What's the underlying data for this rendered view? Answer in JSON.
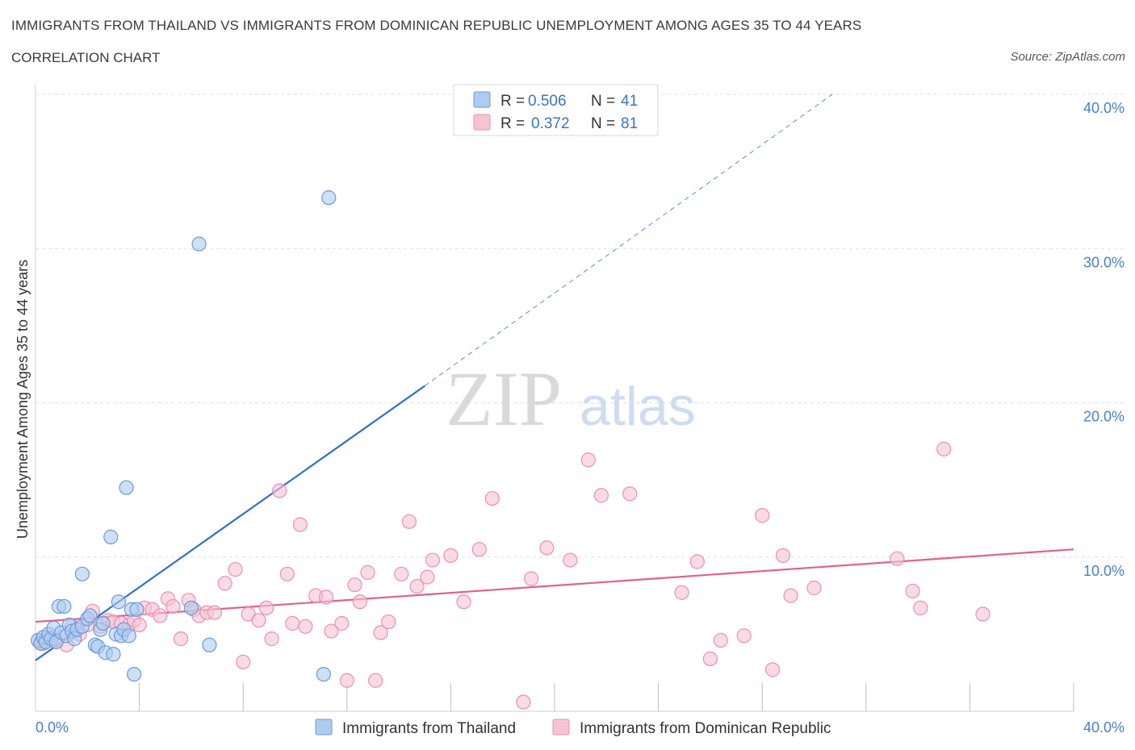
{
  "header": {
    "title": "IMMIGRANTS FROM THAILAND VS IMMIGRANTS FROM DOMINICAN REPUBLIC UNEMPLOYMENT AMONG AGES 35 TO 44 YEARS",
    "subtitle": "CORRELATION CHART",
    "source": "Source: ZipAtlas.com"
  },
  "watermark": {
    "zip": "ZIP",
    "atlas": "atlas"
  },
  "colors": {
    "thailand_fill": "#aecbf0",
    "thailand_stroke": "#6a9ad6",
    "thailand_line": "#2f6fcc",
    "dominican_fill": "#f6c3d3",
    "dominican_stroke": "#e891ad",
    "dominican_line": "#e0608c",
    "axis_label": "#4a7fc9",
    "grid": "#dddddd"
  },
  "legend": {
    "rows": [
      {
        "r_label": "R =",
        "r_value": "0.506",
        "n_label": "N =",
        "n_value": "41"
      },
      {
        "r_label": "R =",
        "r_value": "0.372",
        "n_label": "N =",
        "n_value": "81"
      }
    ]
  },
  "chart_data": {
    "type": "scatter",
    "title": "IMMIGRANTS FROM THAILAND VS IMMIGRANTS FROM DOMINICAN REPUBLIC UNEMPLOYMENT AMONG AGES 35 TO 44 YEARS",
    "subtitle": "CORRELATION CHART",
    "xlabel": "",
    "ylabel": "Unemployment Among Ages 35 to 44 years",
    "xlim": [
      0,
      40
    ],
    "ylim": [
      0,
      40
    ],
    "x_tick_labels": [
      "0.0%",
      "40.0%"
    ],
    "y_tick_labels": [
      "10.0%",
      "20.0%",
      "30.0%",
      "40.0%"
    ],
    "y_ticks": [
      10,
      20,
      30,
      40
    ],
    "grid": true,
    "legend_position": "top-center",
    "series": [
      {
        "name": "Immigrants from Thailand",
        "r": 0.506,
        "n": 41,
        "trend": {
          "x0": 0,
          "y0": 3.3,
          "x1": 15,
          "y1": 21.1,
          "dashed_to_x": 30.7,
          "dashed_to_y": 40
        },
        "points": [
          [
            0.1,
            4.6
          ],
          [
            0.2,
            4.4
          ],
          [
            0.3,
            4.8
          ],
          [
            0.4,
            4.5
          ],
          [
            0.5,
            5.0
          ],
          [
            0.6,
            4.7
          ],
          [
            0.7,
            5.4
          ],
          [
            0.8,
            4.5
          ],
          [
            0.9,
            6.8
          ],
          [
            1.0,
            5.1
          ],
          [
            1.1,
            6.8
          ],
          [
            1.2,
            4.9
          ],
          [
            1.3,
            5.6
          ],
          [
            1.4,
            5.2
          ],
          [
            1.5,
            4.7
          ],
          [
            1.6,
            5.3
          ],
          [
            1.8,
            5.5
          ],
          [
            1.8,
            8.9
          ],
          [
            2.0,
            6.0
          ],
          [
            2.1,
            6.2
          ],
          [
            2.3,
            4.3
          ],
          [
            2.4,
            4.2
          ],
          [
            2.5,
            5.3
          ],
          [
            2.6,
            5.7
          ],
          [
            2.7,
            3.8
          ],
          [
            2.9,
            11.3
          ],
          [
            3.0,
            3.7
          ],
          [
            3.1,
            5.0
          ],
          [
            3.2,
            7.1
          ],
          [
            3.3,
            4.9
          ],
          [
            3.4,
            5.3
          ],
          [
            3.5,
            14.5
          ],
          [
            3.6,
            4.9
          ],
          [
            3.7,
            6.6
          ],
          [
            3.8,
            2.4
          ],
          [
            3.9,
            6.6
          ],
          [
            6.0,
            6.7
          ],
          [
            6.3,
            30.3
          ],
          [
            6.7,
            4.3
          ],
          [
            11.3,
            33.3
          ],
          [
            11.1,
            2.4
          ]
        ]
      },
      {
        "name": "Immigrants from Dominican Republic",
        "r": 0.372,
        "n": 81,
        "trend": {
          "x0": 0,
          "y0": 5.8,
          "x1": 40,
          "y1": 10.5
        },
        "points": [
          [
            0.2,
            4.5
          ],
          [
            0.5,
            4.8
          ],
          [
            0.8,
            4.6
          ],
          [
            1.2,
            4.3
          ],
          [
            1.4,
            5.5
          ],
          [
            1.7,
            5.0
          ],
          [
            2.0,
            5.6
          ],
          [
            2.2,
            6.5
          ],
          [
            2.5,
            5.5
          ],
          [
            2.8,
            5.9
          ],
          [
            3.0,
            5.8
          ],
          [
            3.3,
            5.7
          ],
          [
            3.6,
            5.6
          ],
          [
            3.8,
            5.9
          ],
          [
            4.0,
            5.6
          ],
          [
            4.2,
            6.7
          ],
          [
            4.5,
            6.6
          ],
          [
            4.8,
            6.2
          ],
          [
            5.1,
            7.3
          ],
          [
            5.3,
            6.8
          ],
          [
            5.6,
            4.7
          ],
          [
            5.9,
            7.2
          ],
          [
            6.1,
            6.6
          ],
          [
            6.3,
            6.2
          ],
          [
            6.6,
            6.4
          ],
          [
            6.9,
            6.4
          ],
          [
            7.3,
            8.3
          ],
          [
            7.7,
            9.2
          ],
          [
            8.0,
            3.2
          ],
          [
            8.2,
            6.3
          ],
          [
            8.6,
            5.9
          ],
          [
            8.9,
            6.7
          ],
          [
            9.1,
            4.7
          ],
          [
            9.4,
            14.3
          ],
          [
            9.7,
            8.9
          ],
          [
            9.9,
            5.7
          ],
          [
            10.2,
            12.1
          ],
          [
            10.4,
            5.5
          ],
          [
            10.8,
            7.5
          ],
          [
            11.2,
            7.4
          ],
          [
            11.4,
            5.2
          ],
          [
            11.8,
            5.7
          ],
          [
            12.0,
            2.0
          ],
          [
            12.3,
            8.2
          ],
          [
            12.5,
            7.1
          ],
          [
            12.8,
            9.0
          ],
          [
            13.1,
            2.0
          ],
          [
            13.3,
            5.1
          ],
          [
            13.6,
            5.8
          ],
          [
            14.1,
            8.9
          ],
          [
            14.4,
            12.3
          ],
          [
            14.7,
            8.1
          ],
          [
            15.1,
            8.7
          ],
          [
            15.3,
            9.8
          ],
          [
            16.0,
            10.1
          ],
          [
            16.5,
            7.1
          ],
          [
            17.1,
            10.5
          ],
          [
            17.6,
            13.8
          ],
          [
            18.8,
            0.6
          ],
          [
            19.1,
            8.6
          ],
          [
            19.7,
            10.6
          ],
          [
            20.6,
            9.8
          ],
          [
            21.3,
            16.3
          ],
          [
            21.8,
            14.0
          ],
          [
            22.9,
            14.1
          ],
          [
            24.9,
            7.7
          ],
          [
            25.5,
            9.7
          ],
          [
            26.0,
            3.4
          ],
          [
            26.4,
            4.6
          ],
          [
            27.3,
            4.9
          ],
          [
            28.0,
            12.7
          ],
          [
            28.4,
            2.7
          ],
          [
            28.8,
            10.1
          ],
          [
            29.1,
            7.5
          ],
          [
            30.0,
            8.0
          ],
          [
            33.2,
            9.9
          ],
          [
            33.8,
            7.8
          ],
          [
            34.1,
            6.7
          ],
          [
            35.0,
            17.0
          ],
          [
            36.5,
            6.3
          ],
          [
            0.3,
            4.4
          ]
        ]
      }
    ]
  },
  "bottom_legend": {
    "items": [
      {
        "label": "Immigrants from Thailand"
      },
      {
        "label": "Immigrants from Dominican Republic"
      }
    ]
  }
}
